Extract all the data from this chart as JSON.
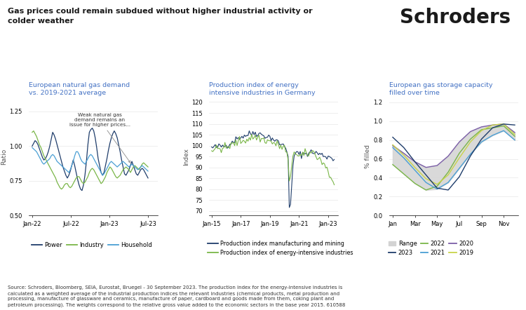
{
  "main_title": "Gas prices could remain subdued without higher industrial activity or\ncolder weather",
  "schroders_logo": "Schroders",
  "bg_color": "#ffffff",
  "title_color": "#1a1a1a",
  "subtitle_color": "#4472c4",
  "panel1": {
    "title": "European natural gas demand\nvs. 2019-2021 average",
    "ylabel": "Ratio",
    "ylim": [
      0.5,
      1.35
    ],
    "yticks": [
      0.5,
      0.75,
      1.0,
      1.25
    ],
    "colors": {
      "Power": "#1f3d6b",
      "Industry": "#7ab648",
      "Household": "#4a9fd4"
    }
  },
  "panel2": {
    "title": "Production index of energy\nintensive industries in Germany",
    "ylabel": "Index",
    "ylim": [
      68,
      122
    ],
    "yticks": [
      70,
      75,
      80,
      85,
      90,
      95,
      100,
      105,
      110,
      115,
      120
    ],
    "colors": {
      "manufacturing": "#1f3d6b",
      "energy_intensive": "#7ab648"
    }
  },
  "panel3": {
    "title": "European gas storage capacity\nfilled over time",
    "ylabel": "% filled",
    "ylim": [
      0.0,
      1.25
    ],
    "yticks": [
      0.0,
      0.2,
      0.4,
      0.6,
      0.8,
      1.0,
      1.2
    ],
    "colors": {
      "2023": "#1f3d6b",
      "2022": "#7ab648",
      "2021": "#4a9fd4",
      "2020": "#7b5ea7",
      "2019": "#c8d44a",
      "range_fill": "#d3d3d3"
    }
  },
  "source_text": "Source: Schroders, Bloomberg, SEIA, Eurostat, Bruegel - 30 September 2023. The production index for the energy-intensive industries is\ncalculated as a weighted average of the industrial production indices the relevant industries (chemical products, metal production and\nprocessing, manufacture of glassware and ceramics, manufacture of paper, cardboard and goods made from them, coking plant and\npetroleum processing). The weights correspond to the relative gross value added to the economic sectors in the base year 2015. 610588"
}
